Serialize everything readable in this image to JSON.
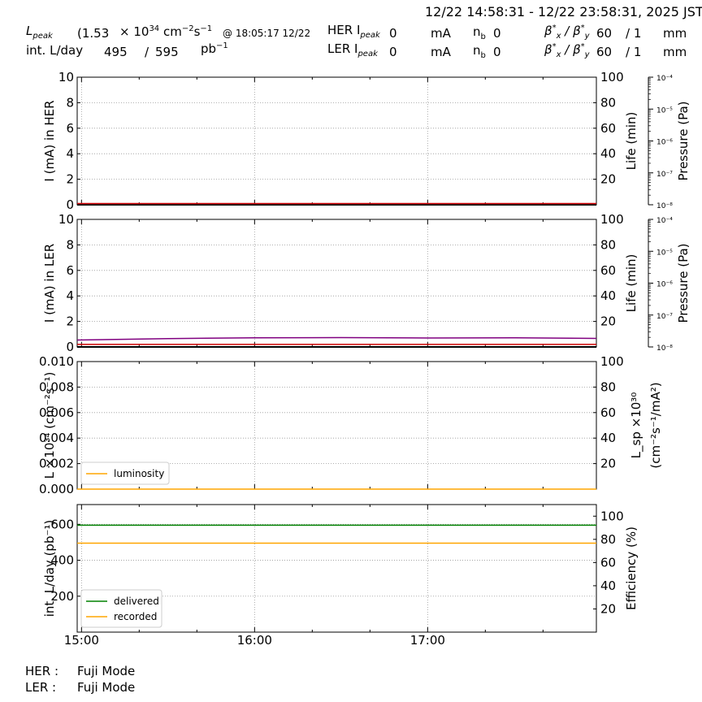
{
  "header": {
    "time_range": "12/22 14:58:31 - 12/22 23:58:31, 2025 JST",
    "lum_peak_label": "L",
    "lum_peak_sub": "peak",
    "lum_peak_value": "(1.53",
    "lum_peak_times": "× 10",
    "lum_peak_exp": "34",
    "lum_peak_unit_a": "cm",
    "lum_peak_unit_exp1": "−2",
    "lum_peak_unit_b": "s",
    "lum_peak_unit_exp2": "−1",
    "lum_peak_time": "@ 18:05:17 12/22",
    "int_lum_label": "int. L/day",
    "int_lum_recorded": "495",
    "int_lum_slash": "/",
    "int_lum_delivered": "595",
    "int_lum_unit": "pb",
    "int_lum_unit_exp": "−1",
    "her_ipeak_label": "HER I",
    "her_ipeak_sub": "peak",
    "her_ipeak_value": "0",
    "her_ipeak_unit": "mA",
    "her_nb_label": "n",
    "her_nb_sub": "b",
    "her_nb_value": "0",
    "her_beta_label": "β",
    "her_beta_value_x": "60",
    "her_beta_value_y": "/ 1",
    "her_beta_unit": "mm",
    "ler_ipeak_label": "LER I",
    "ler_ipeak_sub": "peak",
    "ler_ipeak_value": "0",
    "ler_ipeak_unit": "mA",
    "ler_nb_label": "n",
    "ler_nb_sub": "b",
    "ler_nb_value": "0",
    "ler_beta_label": "β",
    "ler_beta_value_x": "60",
    "ler_beta_value_y": "/ 1",
    "ler_beta_unit": "mm"
  },
  "footer": {
    "her_label": "HER :",
    "her_mode": "Fuji Mode",
    "ler_label": "LER :",
    "ler_mode": "Fuji Mode"
  },
  "colors": {
    "her_current": "#000000",
    "ler_current": "#000000",
    "lifetime_line": "#800080",
    "pressure_line": "#cc0000",
    "luminosity": "#ffa500",
    "delivered": "#008000",
    "recorded": "#ffa500",
    "grid": "#999999"
  },
  "chart_data": [
    {
      "type": "line",
      "panel": "HER",
      "ylabel": "I (mA) in HER",
      "ylim": [
        0,
        10
      ],
      "yticks": [
        "0",
        "2",
        "4",
        "6",
        "8",
        "10"
      ],
      "y2label": "Life (min)",
      "y2lim": [
        0,
        100
      ],
      "y2ticks": [
        "20",
        "40",
        "60",
        "80",
        "100"
      ],
      "y3label": "Pressure (Pa)",
      "y3scale": "log",
      "y3lim": [
        1e-08,
        0.0001
      ],
      "y3ticks": [
        "10⁻⁸",
        "10⁻⁷",
        "10⁻⁶",
        "10⁻⁵",
        "10⁻⁴"
      ],
      "xlim": [
        14.975,
        17.975
      ],
      "grid": true,
      "series": [
        {
          "role": "current",
          "x": [
            14.975,
            17.975
          ],
          "values": [
            0,
            0
          ]
        },
        {
          "role": "lifetime",
          "x": [
            14.975,
            16.0,
            17.975
          ],
          "values": [
            0.8,
            0.8,
            0.8
          ]
        },
        {
          "role": "pressure",
          "x": [
            14.975,
            17.975
          ],
          "values": [
            1e-08,
            1e-08
          ]
        }
      ]
    },
    {
      "type": "line",
      "panel": "LER",
      "ylabel": "I (mA) in LER",
      "ylim": [
        0,
        10
      ],
      "yticks": [
        "0",
        "2",
        "4",
        "6",
        "8",
        "10"
      ],
      "y2label": "Life (min)",
      "y2lim": [
        0,
        100
      ],
      "y2ticks": [
        "20",
        "40",
        "60",
        "80",
        "100"
      ],
      "y3label": "Pressure (Pa)",
      "y3scale": "log",
      "y3lim": [
        1e-08,
        0.0001
      ],
      "y3ticks": [
        "10⁻⁸",
        "10⁻⁷",
        "10⁻⁶",
        "10⁻⁵",
        "10⁻⁴"
      ],
      "xlim": [
        14.975,
        17.975
      ],
      "grid": true,
      "series": [
        {
          "role": "current",
          "x": [
            14.975,
            17.975
          ],
          "values": [
            0,
            0
          ]
        },
        {
          "role": "lifetime",
          "x": [
            14.975,
            15.5,
            16.0,
            16.5,
            17.0,
            17.5,
            17.975
          ],
          "values": [
            5.4,
            6.5,
            7.2,
            7.3,
            7.0,
            7.2,
            6.7
          ]
        },
        {
          "role": "pressure",
          "x": [
            14.975,
            17.975
          ],
          "values": [
            1.1e-08,
            1.1e-08
          ]
        }
      ]
    },
    {
      "type": "line",
      "panel": "Luminosity",
      "ylabel": "L ×10³⁴ (cm⁻²s⁻¹)",
      "ylim": [
        0,
        0.01
      ],
      "yticks": [
        "0.000",
        "0.002",
        "0.004",
        "0.006",
        "0.008",
        "0.010"
      ],
      "y2label_top": "L_sp ×10³⁰",
      "y2label_bottom": "(cm⁻²s⁻¹/mA²)",
      "y2lim": [
        0,
        100
      ],
      "y2ticks": [
        "20",
        "40",
        "60",
        "80",
        "100"
      ],
      "xlim": [
        14.975,
        17.975
      ],
      "grid": true,
      "legend": "lower-left",
      "series": [
        {
          "name": "luminosity",
          "x": [
            14.975,
            17.975
          ],
          "values": [
            0,
            0
          ]
        }
      ]
    },
    {
      "type": "line",
      "panel": "Integrated",
      "ylabel": "int. L/day (pb⁻¹)",
      "ylim": [
        0,
        710
      ],
      "yticks": [
        "200",
        "400",
        "600"
      ],
      "y2label": "Efficiency (%)",
      "y2lim": [
        0,
        110
      ],
      "y2ticks": [
        "20",
        "40",
        "60",
        "80",
        "100"
      ],
      "xlim": [
        14.975,
        17.975
      ],
      "xticks": [
        {
          "value": 15.0,
          "label": "15:00"
        },
        {
          "value": 16.0,
          "label": "16:00"
        },
        {
          "value": 17.0,
          "label": "17:00"
        }
      ],
      "grid": true,
      "legend": "lower-left",
      "series": [
        {
          "name": "delivered",
          "x": [
            14.975,
            17.975
          ],
          "values": [
            595,
            595
          ]
        },
        {
          "name": "recorded",
          "x": [
            14.975,
            17.975
          ],
          "values": [
            495,
            495
          ]
        }
      ]
    }
  ]
}
